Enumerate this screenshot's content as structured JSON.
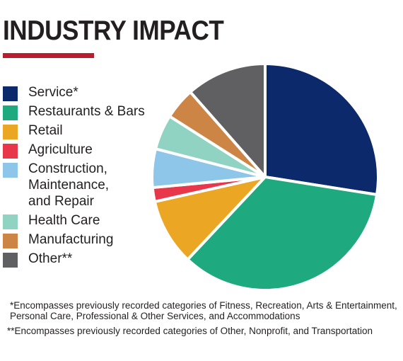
{
  "title": "INDUSTRY IMPACT",
  "colors": {
    "accent_rule": "#b81e2d"
  },
  "chart_data": {
    "type": "pie",
    "series": [
      {
        "label": "Service*",
        "value": 27.5,
        "color": "#0c2a6b"
      },
      {
        "label": "Restaurants & Bars",
        "value": 34.5,
        "color": "#1ea97f"
      },
      {
        "label": "Retail",
        "value": 9.5,
        "color": "#eba623"
      },
      {
        "label": "Agriculture",
        "value": 2.0,
        "color": "#e8374b"
      },
      {
        "label": "Construction,\nMaintenance,\nand Repair",
        "value": 5.5,
        "color": "#8ec6e9"
      },
      {
        "label": "Health Care",
        "value": 5.0,
        "color": "#91d3c2"
      },
      {
        "label": "Manufacturing",
        "value": 4.5,
        "color": "#cc8545"
      },
      {
        "label": "Other**",
        "value": 11.5,
        "color": "#606062"
      }
    ]
  },
  "footnotes": [
    "*Encompasses previously recorded categories of Fitness, Recreation, Arts & Entertainment, Personal Care, Professional & Other Services, and Accommodations",
    "**Encompasses previously recorded categories of Other, Nonprofit, and Transportation"
  ]
}
